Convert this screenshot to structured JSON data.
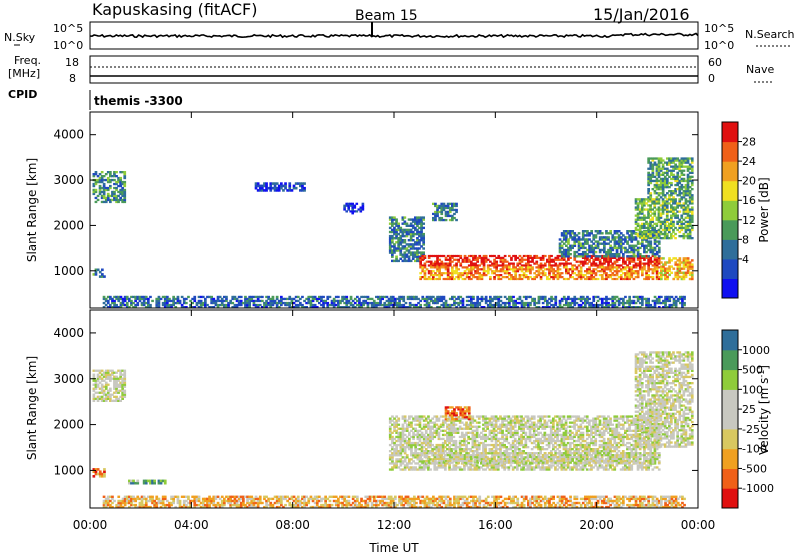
{
  "header": {
    "station": "Kapuskasing (fitACF)",
    "beam": "Beam 15",
    "date": "15/Jan/2016"
  },
  "top_panels": {
    "nsky_label": "N.Sky",
    "nsky_ticks": [
      "10^5",
      "10^0"
    ],
    "nsearch_label": "N.Search",
    "freq_label_1": "Freq.",
    "freq_label_2": "[MHz]",
    "freq_ticks": [
      "18",
      "8"
    ],
    "nave_label": "Nave",
    "nave_ticks": [
      "60",
      "0"
    ],
    "cpid_label": "CPID",
    "cpid_value": "themis -3300"
  },
  "colors": {
    "power_scale": [
      "#1010f0",
      "#1f49c0",
      "#2f6e9a",
      "#4a9a5a",
      "#8fcc3a",
      "#f0e020",
      "#f0a020",
      "#f06018",
      "#e01010"
    ],
    "velocity_scale": [
      "#e01010",
      "#f06018",
      "#f0a020",
      "#d8c860",
      "#c8c8c0",
      "#c8c8c0",
      "#8fcc3a",
      "#4a9a5a",
      "#2f6e9a",
      "#1010f0"
    ],
    "ground_scatter": "#c8c8c0"
  },
  "chart_data": [
    {
      "type": "heatmap",
      "panel": "power",
      "xlabel": "",
      "ylabel": "Slant Range [km]",
      "colorbar_label": "Power [dB]",
      "colorbar_ticks": [
        "28",
        "24",
        "20",
        "16",
        "12",
        "8",
        "4"
      ],
      "x_ticks": [
        "00:00",
        "04:00",
        "08:00",
        "12:00",
        "16:00",
        "20:00",
        "00:00"
      ],
      "y_ticks": [
        "4000",
        "3000",
        "2000",
        "1000"
      ],
      "xlim_hours": [
        0,
        24
      ],
      "ylim_km": [
        180,
        4500
      ],
      "regions": [
        {
          "t": [
            0.1,
            1.4
          ],
          "r": [
            2500,
            3200
          ],
          "level": 0.35
        },
        {
          "t": [
            0.1,
            0.6
          ],
          "r": [
            850,
            1050
          ],
          "level": 0.3
        },
        {
          "t": [
            0.5,
            23.5
          ],
          "r": [
            180,
            450
          ],
          "level": 0.25
        },
        {
          "t": [
            6.5,
            8.5
          ],
          "r": [
            2750,
            2950
          ],
          "level": 0.15
        },
        {
          "t": [
            10.0,
            10.8
          ],
          "r": [
            2250,
            2500
          ],
          "level": 0.15
        },
        {
          "t": [
            11.8,
            13.2
          ],
          "r": [
            1200,
            2200
          ],
          "level": 0.3
        },
        {
          "t": [
            13.0,
            22.5
          ],
          "r": [
            1100,
            1350
          ],
          "level": 0.95
        },
        {
          "t": [
            13.0,
            22.5
          ],
          "r": [
            800,
            1100
          ],
          "level": 0.75
        },
        {
          "t": [
            13.5,
            14.5
          ],
          "r": [
            2100,
            2500
          ],
          "level": 0.3
        },
        {
          "t": [
            18.5,
            22.5
          ],
          "r": [
            1300,
            1900
          ],
          "level": 0.3
        },
        {
          "t": [
            21.5,
            23.8
          ],
          "r": [
            1700,
            2600
          ],
          "level": 0.45
        },
        {
          "t": [
            22.0,
            23.8
          ],
          "r": [
            2600,
            3500
          ],
          "level": 0.4
        },
        {
          "t": [
            22.5,
            23.8
          ],
          "r": [
            800,
            1300
          ],
          "level": 0.7
        }
      ]
    },
    {
      "type": "heatmap",
      "panel": "velocity",
      "xlabel": "Time UT",
      "ylabel": "Slant Range [km]",
      "colorbar_label": "Velocity [m s^-1]",
      "colorbar_ticks": [
        "1000",
        "500",
        "100",
        "25",
        "-25",
        "-100",
        "-500",
        "-1000"
      ],
      "x_ticks": [
        "00:00",
        "04:00",
        "08:00",
        "12:00",
        "16:00",
        "20:00",
        "00:00"
      ],
      "y_ticks": [
        "4000",
        "3000",
        "2000",
        "1000"
      ],
      "xlim_hours": [
        0,
        24
      ],
      "ylim_km": [
        180,
        4500
      ],
      "regions": [
        {
          "t": [
            0.1,
            1.4
          ],
          "r": [
            2500,
            3200
          ],
          "level": 0.5
        },
        {
          "t": [
            0.1,
            0.6
          ],
          "r": [
            850,
            1050
          ],
          "level": 0.2
        },
        {
          "t": [
            0.5,
            23.5
          ],
          "r": [
            180,
            450
          ],
          "level": 0.3
        },
        {
          "t": [
            11.8,
            22.5
          ],
          "r": [
            1000,
            2200
          ],
          "level": 0.5
        },
        {
          "t": [
            13.0,
            22.5
          ],
          "r": [
            1150,
            1400
          ],
          "level": 0.5
        },
        {
          "t": [
            14.0,
            15.0
          ],
          "r": [
            2100,
            2400
          ],
          "level": 0.15
        },
        {
          "t": [
            21.5,
            23.8
          ],
          "r": [
            1500,
            3600
          ],
          "level": 0.5
        },
        {
          "t": [
            1.5,
            3.0
          ],
          "r": [
            700,
            800
          ],
          "level": 0.7
        }
      ]
    }
  ]
}
